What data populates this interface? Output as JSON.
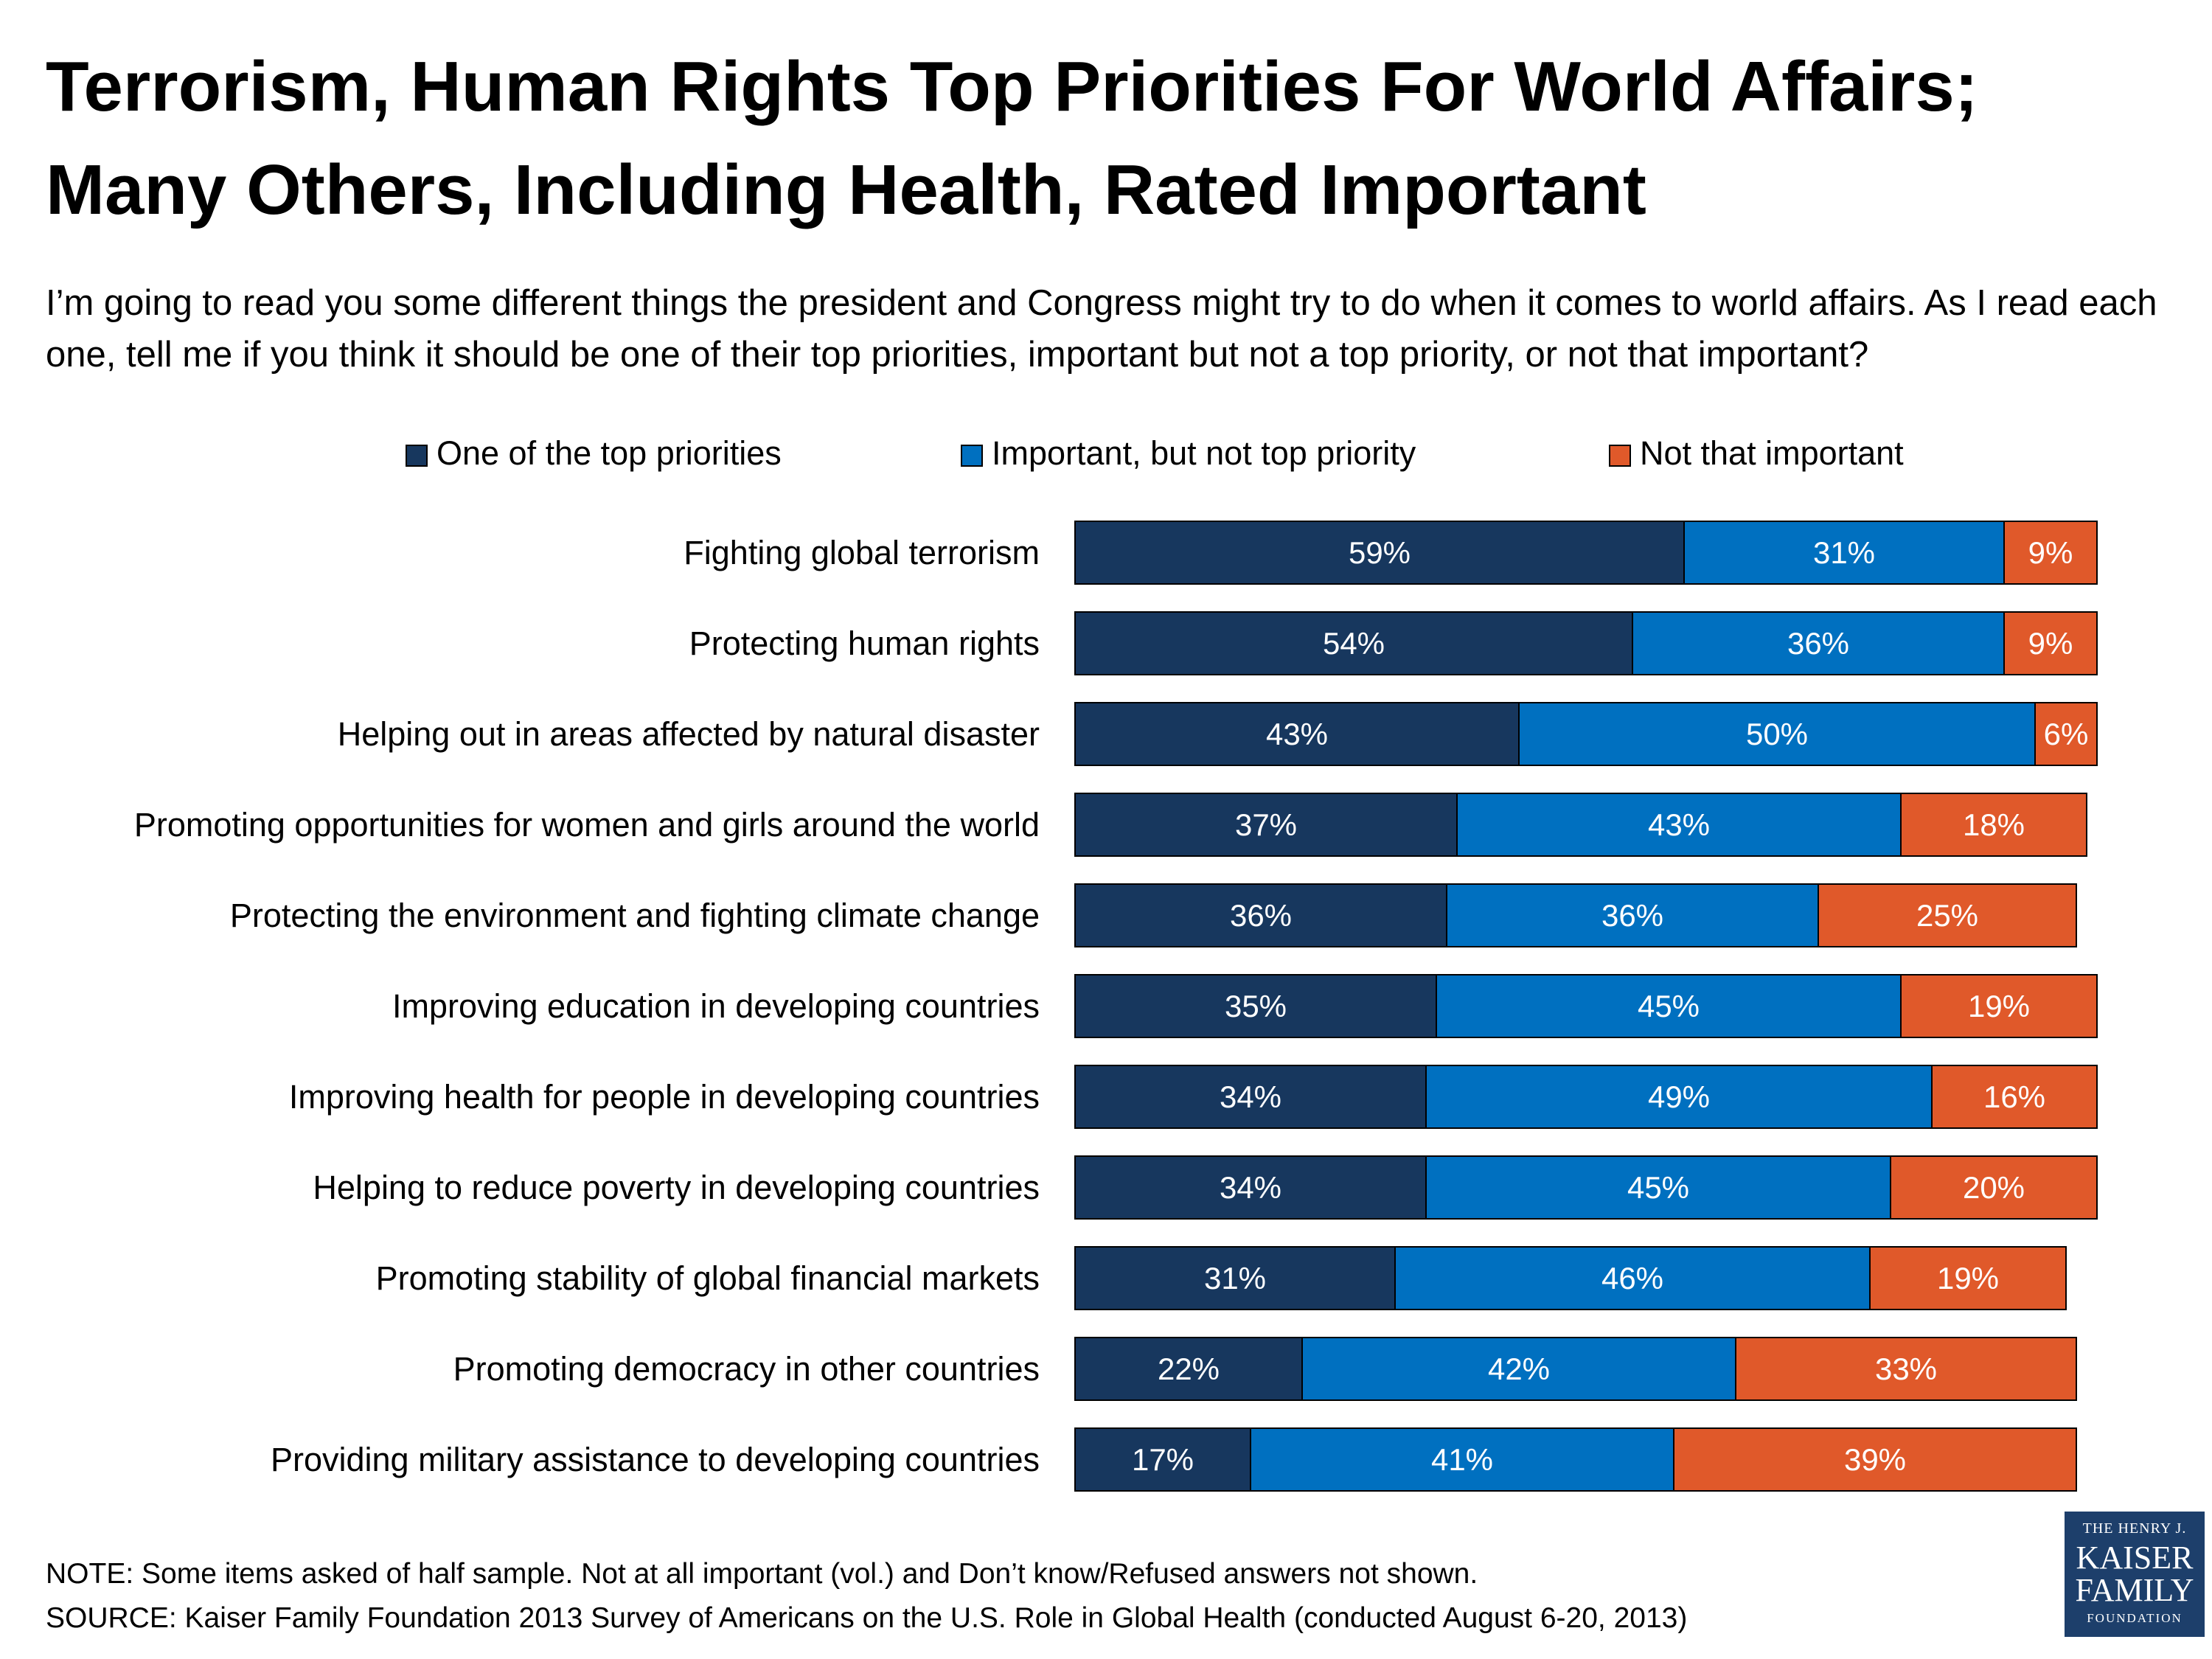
{
  "header": {
    "title_line1": "Terrorism, Human Rights Top Priorities For World Affairs;",
    "title_line2": "Many Others, Including Health, Rated Important",
    "question": "I’m going to read you some different things the president and Congress might try to do when it comes to world affairs. As I read each one, tell me if you think it should be one of their top priorities, important but not a top priority, or not that important?"
  },
  "footer": {
    "note": "NOTE: Some items asked of half sample. Not at all important (vol.) and Don’t know/Refused answers not shown.",
    "source": "SOURCE: Kaiser Family Foundation 2013 Survey of Americans on the U.S. Role in Global Health (conducted August 6-20, 2013)"
  },
  "logo": {
    "line1": "THE HENRY J.",
    "line2": "KAISER",
    "line3": "FAMILY",
    "line4": "FOUNDATION"
  },
  "chart_data": {
    "type": "bar",
    "orientation": "horizontal",
    "stacked": true,
    "value_suffix": "%",
    "legend_position": "top",
    "grid": false,
    "xlim": [
      0,
      100
    ],
    "categories": [
      "Fighting global terrorism",
      "Protecting human rights",
      "Helping out in areas affected by natural disaster",
      "Promoting opportunities for women and girls around the world",
      "Protecting the environment and fighting climate change",
      "Improving education in developing countries",
      "Improving health for people in developing countries",
      "Helping to reduce poverty in developing countries",
      "Promoting stability of global financial markets",
      "Promoting democracy in other countries",
      "Providing military assistance to developing countries"
    ],
    "series": [
      {
        "name": "One of the top priorities",
        "color": "#17375e",
        "values": [
          59,
          54,
          43,
          37,
          36,
          35,
          34,
          34,
          31,
          22,
          17
        ]
      },
      {
        "name": "Important, but not top priority",
        "color": "#0070c0",
        "values": [
          31,
          36,
          50,
          43,
          36,
          45,
          49,
          45,
          46,
          42,
          41
        ]
      },
      {
        "name": "Not that important",
        "color": "#e0592a",
        "values": [
          9,
          9,
          6,
          18,
          25,
          19,
          16,
          20,
          19,
          33,
          39
        ]
      }
    ]
  }
}
